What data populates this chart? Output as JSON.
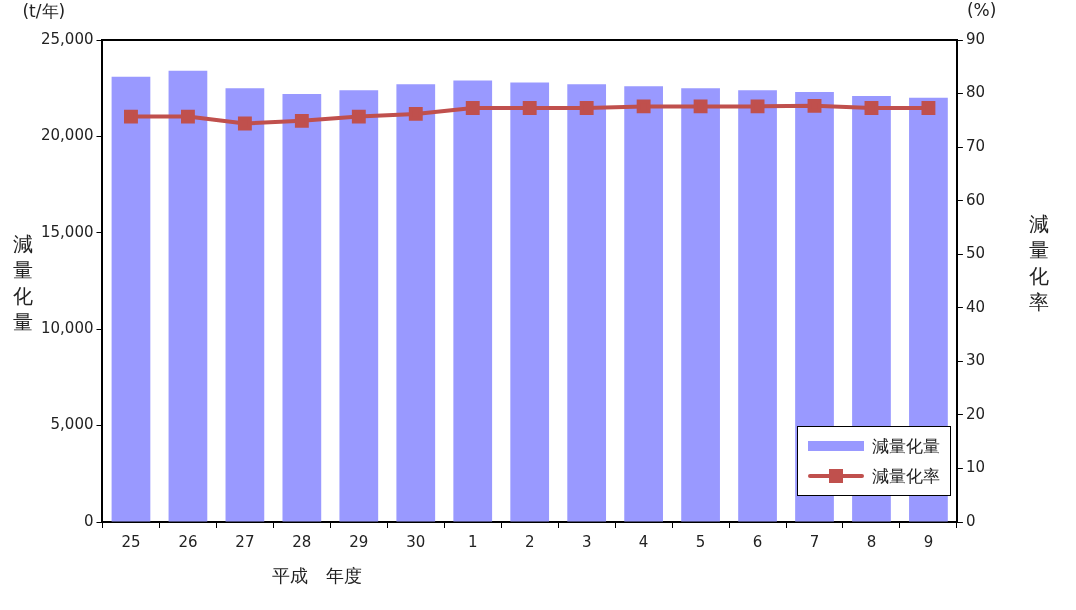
{
  "chart_data": {
    "type": "bar",
    "categories": [
      "25",
      "26",
      "27",
      "28",
      "29",
      "30",
      "1",
      "2",
      "3",
      "4",
      "5",
      "6",
      "7",
      "8",
      "9"
    ],
    "xlabel": "平成　年度",
    "ylabel": "減量化量",
    "y2label": "減量化率",
    "annotations": [
      "(t/年)",
      "(%)"
    ],
    "series": [
      {
        "name": "減量化量",
        "color": "#9999ff",
        "values": [
          23100,
          23400,
          22500,
          22200,
          22400,
          22700,
          22900,
          22800,
          22700,
          22600,
          22500,
          22400,
          22300,
          22100,
          22000
        ]
      },
      {
        "name": "減量化率",
        "type": "line",
        "axis": "y2",
        "color": "#c0504d",
        "values": [
          75.7,
          75.7,
          74.4,
          74.9,
          75.7,
          76.2,
          77.3,
          77.3,
          77.3,
          77.6,
          77.6,
          77.6,
          77.7,
          77.3,
          77.3
        ]
      }
    ],
    "ylim": [
      0,
      25000
    ],
    "yticks": [
      {
        "value": 0,
        "label": "0"
      },
      {
        "value": 5000,
        "label": "5,000"
      },
      {
        "value": 10000,
        "label": "10,000"
      },
      {
        "value": 15000,
        "label": "15,000"
      },
      {
        "value": 20000,
        "label": "20,000"
      },
      {
        "value": 25000,
        "label": "25,000"
      }
    ],
    "y2lim": [
      0,
      90
    ],
    "y2ticks": [
      0,
      10,
      20,
      30,
      40,
      50,
      60,
      70,
      80,
      90
    ],
    "grid": false,
    "legend": "bottom right",
    "marker": "square",
    "line_style": "solid"
  }
}
